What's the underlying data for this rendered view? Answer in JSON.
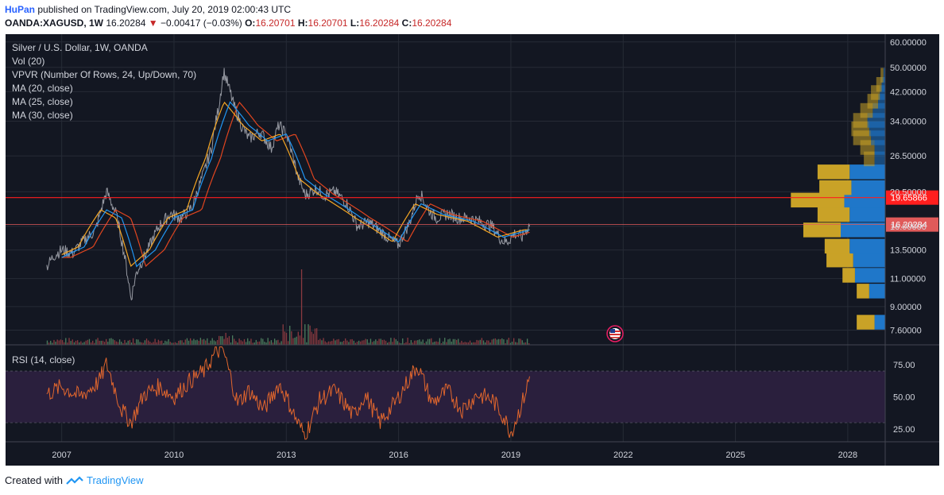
{
  "header": {
    "user": "HuPan",
    "published_text": "published on TradingView.com, July 20, 2019 02:00:43 UTC",
    "symbol": "OANDA:XAGUSD, 1W",
    "last_price": "16.20284",
    "change": "−0.00417 (−0.03%)",
    "open_label": "O:",
    "open_value": "16.20701",
    "high_label": "H:",
    "high_value": "16.20701",
    "low_label": "L:",
    "low_value": "16.20284",
    "close_label": "C:",
    "close_value": "16.20284"
  },
  "legend": {
    "title": "Silver / U.S. Dollar, 1W, OANDA",
    "vol": "Vol (20)",
    "vpvr": "VPVR (Number Of Rows, 24, Up/Down, 70)",
    "ma20": "MA (20, close)",
    "ma25": "MA (25, close)",
    "ma30": "MA (30, close)",
    "rsi": "RSI (14, close)"
  },
  "footer": {
    "created_with": "Created with",
    "brand": "TradingView"
  },
  "colors": {
    "background": "#131722",
    "price_line": "#9598a1",
    "ma20": "#2196f3",
    "ma25": "#f5a623",
    "ma30": "#e1451f",
    "rsi_line": "#e1662d",
    "rsi_band": "#2a1f3d",
    "vol_up": "#4c7d5e",
    "vol_down": "#8a3a40",
    "vpvr_up": "#1f77c9",
    "vpvr_down": "#c9a227",
    "resistance_line": "#ff1e1e",
    "last_price_line": "#e05a5a",
    "grid": "#262b36"
  },
  "chart_data": [
    {
      "type": "line",
      "title": "Silver / U.S. Dollar, 1W, OANDA",
      "xlabel": "",
      "ylabel": "",
      "xlim": [
        2005.5,
        2029.0
      ],
      "ylim": [
        7.0,
        62.0
      ],
      "y_scale": "log",
      "x_ticks": [
        "2007",
        "2010",
        "2013",
        "2016",
        "2019",
        "2022",
        "2025",
        "2028"
      ],
      "y_ticks": [
        "60.00000",
        "50.00000",
        "42.00000",
        "34.00000",
        "26.50000",
        "20.50000",
        "16.00000",
        "13.50000",
        "11.00000",
        "9.00000",
        "7.60000"
      ],
      "grid": true,
      "series": [
        {
          "name": "XAGUSD",
          "x": [
            2006.6,
            2006.8,
            2007.0,
            2007.3,
            2007.6,
            2007.9,
            2008.2,
            2008.45,
            2008.7,
            2008.85,
            2009.0,
            2009.3,
            2009.6,
            2009.9,
            2010.2,
            2010.5,
            2010.8,
            2011.0,
            2011.2,
            2011.33,
            2011.6,
            2011.8,
            2012.0,
            2012.3,
            2012.6,
            2012.8,
            2013.0,
            2013.3,
            2013.5,
            2013.8,
            2014.0,
            2014.3,
            2014.6,
            2014.9,
            2015.2,
            2015.5,
            2015.8,
            2016.0,
            2016.3,
            2016.55,
            2016.8,
            2017.0,
            2017.3,
            2017.6,
            2017.9,
            2018.2,
            2018.5,
            2018.75,
            2018.9,
            2019.1,
            2019.3,
            2019.5
          ],
          "values": [
            12.0,
            13.0,
            13.5,
            13.2,
            14.5,
            15.5,
            20.5,
            17.5,
            12.5,
            9.5,
            11.5,
            13.5,
            16.0,
            17.5,
            17.0,
            18.5,
            23.5,
            28.0,
            38.0,
            48.5,
            38.0,
            33.0,
            30.0,
            31.5,
            28.0,
            33.0,
            31.0,
            23.0,
            20.0,
            21.0,
            20.0,
            20.5,
            19.0,
            16.0,
            16.5,
            15.5,
            14.5,
            14.0,
            16.5,
            20.5,
            18.0,
            17.0,
            17.5,
            17.0,
            17.0,
            16.5,
            16.0,
            14.5,
            14.3,
            15.2,
            14.8,
            16.2
          ]
        },
        {
          "name": "MA (20, close)",
          "x": [
            2007.0,
            2007.6,
            2008.2,
            2008.6,
            2009.0,
            2009.5,
            2010.0,
            2010.5,
            2011.0,
            2011.5,
            2012.0,
            2012.5,
            2013.0,
            2013.5,
            2014.0,
            2015.0,
            2016.0,
            2016.6,
            2017.2,
            2018.0,
            2018.8,
            2019.5
          ],
          "values": [
            12.8,
            13.8,
            18.0,
            17.0,
            12.0,
            13.5,
            17.0,
            18.0,
            26.0,
            39.0,
            33.0,
            29.5,
            31.0,
            22.5,
            20.2,
            17.0,
            14.3,
            18.8,
            17.4,
            16.6,
            14.8,
            15.6
          ]
        }
      ],
      "annotations": [
        {
          "label": "19.65866",
          "y": 19.65866
        },
        {
          "label": "16.20284",
          "y": 16.20284
        }
      ]
    },
    {
      "type": "line",
      "title": "RSI (14, close)",
      "xlim": [
        2005.5,
        2029.0
      ],
      "ylim": [
        15,
        90
      ],
      "y_ticks": [
        "75.00",
        "50.00",
        "25.00"
      ],
      "bands": [
        30,
        70
      ],
      "series": [
        {
          "name": "RSI (14, close)",
          "x": [
            2006.6,
            2007.0,
            2007.5,
            2008.0,
            2008.2,
            2008.6,
            2008.85,
            2009.2,
            2009.6,
            2010.0,
            2010.4,
            2010.8,
            2011.1,
            2011.3,
            2011.7,
            2012.0,
            2012.4,
            2012.8,
            2013.0,
            2013.3,
            2013.5,
            2013.9,
            2014.3,
            2014.8,
            2015.1,
            2015.5,
            2015.9,
            2016.2,
            2016.5,
            2016.9,
            2017.3,
            2017.7,
            2018.1,
            2018.5,
            2018.8,
            2019.0,
            2019.3,
            2019.5
          ],
          "values": [
            52,
            58,
            50,
            62,
            76,
            40,
            30,
            52,
            58,
            50,
            62,
            70,
            84,
            88,
            45,
            55,
            40,
            60,
            50,
            30,
            20,
            48,
            55,
            35,
            52,
            30,
            45,
            60,
            75,
            45,
            55,
            40,
            52,
            48,
            35,
            22,
            45,
            65
          ]
        }
      ]
    }
  ]
}
